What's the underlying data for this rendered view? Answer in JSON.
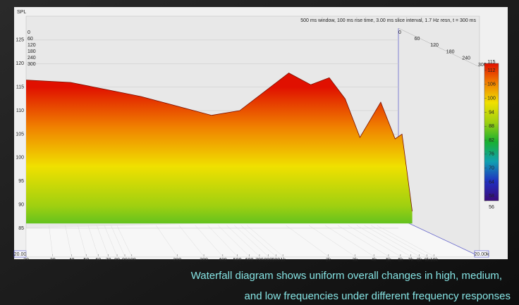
{
  "chart_data": {
    "type": "waterfall",
    "y_label": "SPL",
    "header": "500 ms window, 100 ms rise time, 3.00 ms slice interval, 1.7 Hz resn, t = 300 ms",
    "x": [
      20,
      44,
      153,
      535,
      880,
      2100,
      3100,
      4300,
      5700,
      7400,
      10700,
      13800,
      15600,
      18700
    ],
    "values": [
      116.5,
      116,
      113,
      109,
      110,
      118,
      115.5,
      117,
      112.5,
      104.3,
      111.8,
      104,
      105,
      88.6
    ],
    "floor": 86,
    "xlim": [
      20,
      20000
    ],
    "xlim_labels": [
      "20.00",
      "20.00k"
    ],
    "log_x": true,
    "xticks": [
      20,
      30,
      40,
      50,
      60,
      70,
      80,
      90,
      100,
      200,
      300,
      400,
      500,
      600,
      700,
      800,
      900,
      {
        "value": 1000,
        "label": "1k"
      },
      {
        "value": 2000,
        "label": "2k"
      },
      {
        "value": 3000,
        "label": "3k"
      },
      {
        "value": 4000,
        "label": "4k"
      },
      {
        "value": 5000,
        "label": "5k"
      },
      {
        "value": 6000,
        "label": "6k"
      },
      {
        "value": 7000,
        "label": "7k"
      },
      {
        "value": 8000,
        "label": "8k"
      },
      {
        "value": 9000,
        "label": "9k"
      },
      {
        "value": 10000,
        "label": "10k"
      }
    ],
    "ylim": [
      79,
      130
    ],
    "yticks": [
      85,
      90,
      95,
      100,
      105,
      110,
      115,
      120,
      125
    ],
    "time_ticks": [
      0,
      60,
      120,
      180,
      240,
      300
    ],
    "clim": [
      56,
      115
    ],
    "cticks": [
      56,
      58,
      64,
      70,
      76,
      82,
      88,
      94,
      100,
      106,
      112,
      115
    ],
    "colormap": [
      "#3a0a7a",
      "#2030c0",
      "#10a0b0",
      "#18b030",
      "#9fd010",
      "#f0e000",
      "#f08000",
      "#e01000"
    ],
    "grid": true
  },
  "caption": [
    "Waterfall diagram shows uniform overall changes in high, medium,",
    "and low frequencies under different frequency responses"
  ]
}
